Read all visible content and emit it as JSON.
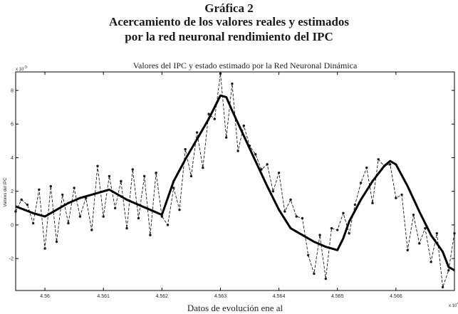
{
  "figure": {
    "title_line1": "Gráfica 2",
    "title_line2": "Acercamiento de los valores reales y estimados",
    "title_line3": "por la red neuronal rendimiento  del IPC"
  },
  "chart_data": {
    "type": "line",
    "title": "Valores del IPC y estado estimado por la Red Neuronal Dinámica",
    "xlabel": "Datos de evolución ene al",
    "ylabel": "Valores del IPC",
    "y_multiplier": "x 10",
    "y_multiplier_exp": "-3",
    "x_multiplier": "x 10",
    "x_multiplier_exp": "4",
    "xlim": [
      45595,
      45670
    ],
    "ylim": [
      -3.9,
      9.1
    ],
    "x_ticks": [
      {
        "value": 45600,
        "label": "4.56"
      },
      {
        "value": 45610,
        "label": "4.561"
      },
      {
        "value": 45620,
        "label": "4.562"
      },
      {
        "value": 45630,
        "label": "4.563"
      },
      {
        "value": 45640,
        "label": "4.564"
      },
      {
        "value": 45650,
        "label": "4.565"
      },
      {
        "value": 45660,
        "label": "4.566"
      }
    ],
    "y_ticks": [
      {
        "value": -2,
        "label": "-2"
      },
      {
        "value": 0,
        "label": "0"
      },
      {
        "value": 2,
        "label": "2"
      },
      {
        "value": 4,
        "label": "4"
      },
      {
        "value": 6,
        "label": "6"
      },
      {
        "value": 8,
        "label": "8"
      }
    ],
    "grid": false,
    "series": [
      {
        "style": "dashed-markers",
        "color": "#1a1a1a",
        "x": [
          45595,
          45596,
          45597,
          45598,
          45599,
          45600,
          45601,
          45602,
          45603,
          45604,
          45605,
          45606,
          45607,
          45608,
          45609,
          45610,
          45611,
          45612,
          45613,
          45614,
          45615,
          45616,
          45617,
          45618,
          45619,
          45620,
          45621,
          45622,
          45623,
          45624,
          45625,
          45626,
          45627,
          45628,
          45629,
          45630,
          45631,
          45632,
          45633,
          45634,
          45635,
          45636,
          45637,
          45638,
          45639,
          45640,
          45641,
          45642,
          45643,
          45644,
          45645,
          45646,
          45647,
          45648,
          45649,
          45650,
          45651,
          45652,
          45653,
          45654,
          45655,
          45656,
          45657,
          45658,
          45659,
          45660,
          45661,
          45662,
          45663,
          45664,
          45665,
          45666,
          45667,
          45668,
          45669,
          45670
        ],
        "values": [
          0.8,
          1.5,
          1.2,
          0.1,
          2.1,
          -1.4,
          2.3,
          -1.0,
          1.8,
          0.1,
          2.2,
          0.5,
          1.6,
          -0.3,
          3.5,
          0.5,
          2.9,
          1.0,
          2.6,
          -0.2,
          3.3,
          0.4,
          2.9,
          -0.6,
          3.1,
          0.5,
          0.0,
          2.2,
          0.9,
          4.5,
          2.9,
          5.5,
          3.4,
          6.6,
          6.3,
          9.0,
          5.2,
          8.4,
          4.4,
          5.9,
          4.7,
          4.2,
          3.3,
          3.6,
          2.0,
          3.1,
          0.8,
          1.5,
          0.5,
          0.4,
          -1.8,
          -2.9,
          -0.6,
          -3.2,
          -0.2,
          -0.3,
          0.7,
          -0.5,
          1.2,
          2.5,
          3.4,
          1.3,
          3.9,
          3.5,
          3.6,
          1.6,
          1.8,
          -1.5,
          0.6,
          -1.1,
          -0.2,
          -2.2,
          -0.5,
          -3.7,
          -2.7,
          -0.5
        ]
      },
      {
        "style": "solid-thick",
        "color": "#000000",
        "x": [
          45595,
          45598,
          45600,
          45602,
          45604,
          45606,
          45608,
          45610,
          45611,
          45612,
          45614,
          45616,
          45618,
          45620,
          45622,
          45624,
          45626,
          45628,
          45629,
          45630,
          45631,
          45632,
          45634,
          45636,
          45638,
          45640,
          45642,
          45644,
          45646,
          45648,
          45650,
          45651,
          45652,
          45654,
          45656,
          45658,
          45659,
          45660,
          45662,
          45664,
          45666,
          45668,
          45669,
          45670
        ],
        "values": [
          1.1,
          0.7,
          0.5,
          0.9,
          1.3,
          1.6,
          1.8,
          2.0,
          2.1,
          1.9,
          1.5,
          1.2,
          0.9,
          0.6,
          2.6,
          3.9,
          5.1,
          6.3,
          7.0,
          7.7,
          7.6,
          6.8,
          5.3,
          3.8,
          2.3,
          0.9,
          -0.2,
          -0.6,
          -1.0,
          -1.3,
          -1.5,
          -0.8,
          0.2,
          1.5,
          2.6,
          3.5,
          3.8,
          3.6,
          2.3,
          0.8,
          -0.6,
          -1.6,
          -2.5,
          -2.7
        ]
      }
    ]
  }
}
